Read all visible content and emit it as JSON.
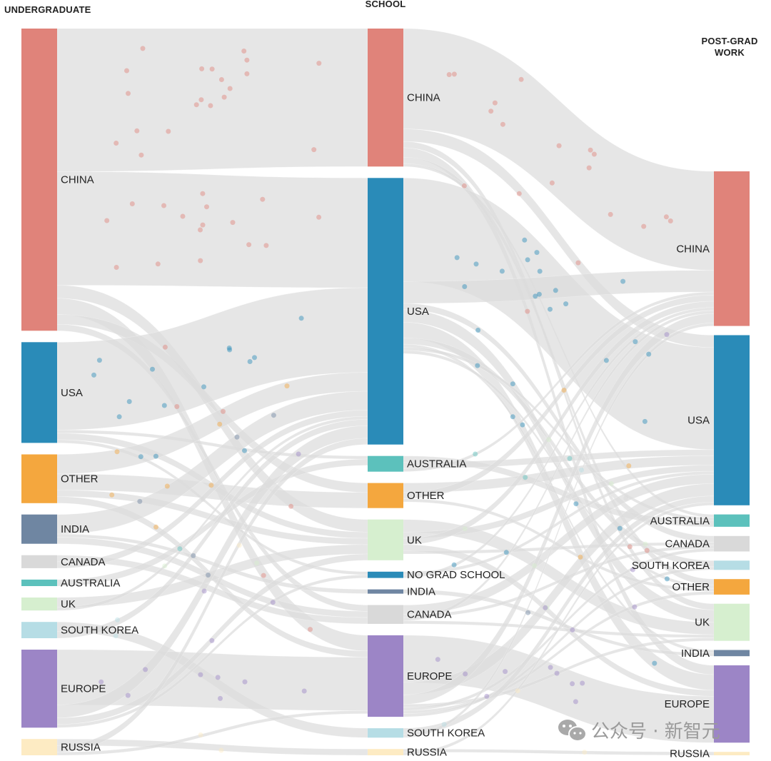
{
  "columns": [
    {
      "title_lines": [
        "UNDERGRADUATE"
      ]
    },
    {
      "title_lines": [
        "SCHOOL"
      ]
    },
    {
      "title_lines": [
        "POST-GRAD",
        "WORK"
      ]
    }
  ],
  "colors": {
    "CHINA": "#e0837a",
    "USA": "#2a8bb8",
    "OTHER": "#f4a73e",
    "INDIA": "#6f86a2",
    "CANADA": "#d9d9d9",
    "AUSTRALIA": "#5cc1bc",
    "UK": "#d6efcf",
    "SOUTH KOREA": "#b6dde5",
    "EUROPE": "#9c85c6",
    "RUSSIA": "#fdebc3",
    "NO GRAD SCHOOL": "#2a8bb8",
    "link": "#dcdcdc"
  },
  "nodes": {
    "undergraduate": [
      "CHINA",
      "USA",
      "OTHER",
      "INDIA",
      "CANADA",
      "AUSTRALIA",
      "UK",
      "SOUTH KOREA",
      "EUROPE",
      "RUSSIA"
    ],
    "school": [
      "CHINA",
      "USA",
      "AUSTRALIA",
      "OTHER",
      "UK",
      "NO GRAD SCHOOL",
      "INDIA",
      "CANADA",
      "EUROPE",
      "SOUTH KOREA",
      "RUSSIA"
    ],
    "work": [
      "CHINA",
      "USA",
      "AUSTRALIA",
      "CANADA",
      "SOUTH KOREA",
      "OTHER",
      "UK",
      "INDIA",
      "EUROPE",
      "RUSSIA"
    ]
  },
  "flows": [
    {
      "from": "undergraduate.CHINA",
      "to": "school.CHINA",
      "value": 44
    },
    {
      "from": "undergraduate.CHINA",
      "to": "school.USA",
      "value": 35
    },
    {
      "from": "undergraduate.CHINA",
      "to": "school.UK",
      "value": 4
    },
    {
      "from": "undergraduate.CHINA",
      "to": "school.EUROPE",
      "value": 5
    },
    {
      "from": "undergraduate.CHINA",
      "to": "school.OTHER",
      "value": 3
    },
    {
      "from": "undergraduate.CHINA",
      "to": "school.CANADA",
      "value": 2
    },
    {
      "from": "undergraduate.USA",
      "to": "school.USA",
      "value": 27
    },
    {
      "from": "undergraduate.USA",
      "to": "school.AUSTRALIA",
      "value": 1
    },
    {
      "from": "undergraduate.USA",
      "to": "school.UK",
      "value": 2
    },
    {
      "from": "undergraduate.USA",
      "to": "school.NO GRAD SCHOOL",
      "value": 1
    },
    {
      "from": "undergraduate.OTHER",
      "to": "school.USA",
      "value": 6
    },
    {
      "from": "undergraduate.OTHER",
      "to": "school.OTHER",
      "value": 5
    },
    {
      "from": "undergraduate.OTHER",
      "to": "school.UK",
      "value": 2
    },
    {
      "from": "undergraduate.OTHER",
      "to": "school.EUROPE",
      "value": 2
    },
    {
      "from": "undergraduate.INDIA",
      "to": "school.USA",
      "value": 6
    },
    {
      "from": "undergraduate.INDIA",
      "to": "school.INDIA",
      "value": 1
    },
    {
      "from": "undergraduate.INDIA",
      "to": "school.CANADA",
      "value": 2
    },
    {
      "from": "undergraduate.CANADA",
      "to": "school.CANADA",
      "value": 2
    },
    {
      "from": "undergraduate.CANADA",
      "to": "school.USA",
      "value": 2
    },
    {
      "from": "undergraduate.AUSTRALIA",
      "to": "school.AUSTRALIA",
      "value": 2
    },
    {
      "from": "undergraduate.UK",
      "to": "school.UK",
      "value": 3
    },
    {
      "from": "undergraduate.UK",
      "to": "school.USA",
      "value": 1
    },
    {
      "from": "undergraduate.SOUTH KOREA",
      "to": "school.SOUTH KOREA",
      "value": 3
    },
    {
      "from": "undergraduate.SOUTH KOREA",
      "to": "school.USA",
      "value": 2
    },
    {
      "from": "undergraduate.EUROPE",
      "to": "school.EUROPE",
      "value": 17
    },
    {
      "from": "undergraduate.EUROPE",
      "to": "school.USA",
      "value": 4
    },
    {
      "from": "undergraduate.EUROPE",
      "to": "school.UK",
      "value": 2
    },
    {
      "from": "undergraduate.EUROPE",
      "to": "school.NO GRAD SCHOOL",
      "value": 1
    },
    {
      "from": "undergraduate.RUSSIA",
      "to": "school.RUSSIA",
      "value": 2
    },
    {
      "from": "undergraduate.RUSSIA",
      "to": "school.USA",
      "value": 2
    },
    {
      "from": "undergraduate.RUSSIA",
      "to": "school.EUROPE",
      "value": 1
    },
    {
      "from": "school.CHINA",
      "to": "work.CHINA",
      "value": 32
    },
    {
      "from": "school.CHINA",
      "to": "work.USA",
      "value": 4
    },
    {
      "from": "school.CHINA",
      "to": "work.UK",
      "value": 2
    },
    {
      "from": "school.CHINA",
      "to": "work.EUROPE",
      "value": 3
    },
    {
      "from": "school.CHINA",
      "to": "work.OTHER",
      "value": 2
    },
    {
      "from": "school.CHINA",
      "to": "work.AUSTRALIA",
      "value": 1
    },
    {
      "from": "school.USA",
      "to": "work.USA",
      "value": 33
    },
    {
      "from": "school.USA",
      "to": "work.CHINA",
      "value": 7
    },
    {
      "from": "school.USA",
      "to": "work.CANADA",
      "value": 2
    },
    {
      "from": "school.USA",
      "to": "work.UK",
      "value": 4
    },
    {
      "from": "school.USA",
      "to": "work.EUROPE",
      "value": 5
    },
    {
      "from": "school.USA",
      "to": "work.SOUTH KOREA",
      "value": 2
    },
    {
      "from": "school.USA",
      "to": "work.INDIA",
      "value": 1
    },
    {
      "from": "school.USA",
      "to": "work.AUSTRALIA",
      "value": 1
    },
    {
      "from": "school.USA",
      "to": "work.OTHER",
      "value": 1
    },
    {
      "from": "school.AUSTRALIA",
      "to": "work.AUSTRALIA",
      "value": 2
    },
    {
      "from": "school.AUSTRALIA",
      "to": "work.USA",
      "value": 2
    },
    {
      "from": "school.AUSTRALIA",
      "to": "work.CHINA",
      "value": 1
    },
    {
      "from": "school.OTHER",
      "to": "work.USA",
      "value": 3
    },
    {
      "from": "school.OTHER",
      "to": "work.CHINA",
      "value": 2
    },
    {
      "from": "school.OTHER",
      "to": "work.OTHER",
      "value": 1
    },
    {
      "from": "school.UK",
      "to": "work.UK",
      "value": 4
    },
    {
      "from": "school.UK",
      "to": "work.USA",
      "value": 2
    },
    {
      "from": "school.UK",
      "to": "work.CHINA",
      "value": 2
    },
    {
      "from": "school.UK",
      "to": "work.EUROPE",
      "value": 2
    },
    {
      "from": "school.UK",
      "to": "work.CANADA",
      "value": 1
    },
    {
      "from": "school.NO GRAD SCHOOL",
      "to": "work.USA",
      "value": 1
    },
    {
      "from": "school.NO GRAD SCHOOL",
      "to": "work.CHINA",
      "value": 1
    },
    {
      "from": "school.INDIA",
      "to": "work.INDIA",
      "value": 1
    },
    {
      "from": "school.CANADA",
      "to": "work.USA",
      "value": 3
    },
    {
      "from": "school.CANADA",
      "to": "work.CANADA",
      "value": 1
    },
    {
      "from": "school.CANADA",
      "to": "work.CHINA",
      "value": 1
    },
    {
      "from": "school.CANADA",
      "to": "work.UK",
      "value": 1
    },
    {
      "from": "school.EUROPE",
      "to": "work.EUROPE",
      "value": 15
    },
    {
      "from": "school.EUROPE",
      "to": "work.USA",
      "value": 4
    },
    {
      "from": "school.EUROPE",
      "to": "work.CHINA",
      "value": 3
    },
    {
      "from": "school.EUROPE",
      "to": "work.UK",
      "value": 1
    },
    {
      "from": "school.EUROPE",
      "to": "work.CANADA",
      "value": 1
    },
    {
      "from": "school.EUROPE",
      "to": "work.OTHER",
      "value": 1
    },
    {
      "from": "school.EUROPE",
      "to": "work.SOUTH KOREA",
      "value": 1
    },
    {
      "from": "school.SOUTH KOREA",
      "to": "work.USA",
      "value": 2
    },
    {
      "from": "school.SOUTH KOREA",
      "to": "work.CHINA",
      "value": 1
    },
    {
      "from": "school.RUSSIA",
      "to": "work.RUSSIA",
      "value": 1
    },
    {
      "from": "school.RUSSIA",
      "to": "work.USA",
      "value": 1
    }
  ],
  "watermark": {
    "text": "公众号 · 新智元",
    "icon": "wechat-icon"
  }
}
